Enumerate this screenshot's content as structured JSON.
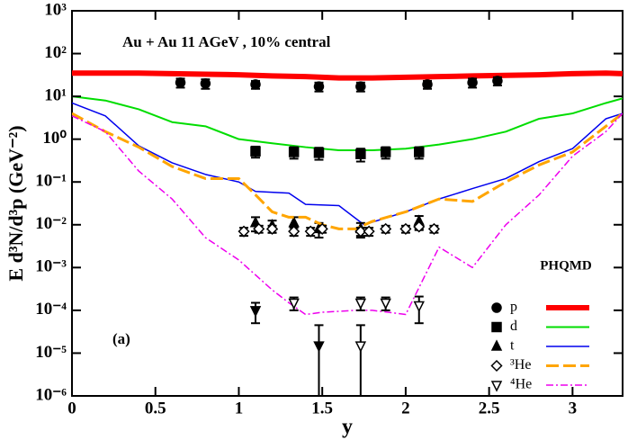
{
  "chart_data": {
    "type": "line",
    "annotation": "Au + Au 11 AGeV , 10% central",
    "panel_label": "(a)",
    "legend_title": "PHQMD",
    "x_label": "y",
    "y_label": "E d³N/d³p (GeV⁻²)",
    "log_y": true,
    "xlim": [
      0,
      3.3
    ],
    "ylim": [
      1e-06,
      1000
    ],
    "xticks": [
      0,
      0.5,
      1,
      1.5,
      2,
      2.5,
      3
    ],
    "yticks": [
      {
        "value": 1e-06,
        "label": "10⁻⁶"
      },
      {
        "value": 1e-05,
        "label": "10⁻⁵"
      },
      {
        "value": 0.0001,
        "label": "10⁻⁴"
      },
      {
        "value": 0.001,
        "label": "10⁻³"
      },
      {
        "value": 0.01,
        "label": "10⁻²"
      },
      {
        "value": 0.1,
        "label": "10⁻¹"
      },
      {
        "value": 1,
        "label": "10⁰"
      },
      {
        "value": 10,
        "label": "10¹"
      },
      {
        "value": 100,
        "label": "10²"
      },
      {
        "value": 1000,
        "label": "10³"
      }
    ],
    "series": [
      {
        "name": "p",
        "color": "#ff0000",
        "line_width": 6,
        "dash": "",
        "marker": "circle",
        "model": {
          "x": [
            0,
            0.2,
            0.4,
            0.6,
            0.8,
            1.0,
            1.2,
            1.4,
            1.6,
            1.8,
            2.0,
            2.2,
            2.4,
            2.6,
            2.8,
            3.0,
            3.2,
            3.3
          ],
          "values": [
            35,
            35,
            35,
            34,
            33,
            32,
            30,
            29,
            27,
            27,
            28,
            29,
            30,
            31,
            32,
            34,
            35,
            34
          ]
        },
        "data": {
          "x": [
            0.65,
            0.8,
            1.1,
            1.48,
            1.73,
            2.13,
            2.4,
            2.55
          ],
          "values": [
            21,
            20,
            19,
            17,
            17,
            19,
            21,
            23
          ],
          "errors": [
            5,
            5,
            4,
            4,
            4,
            4,
            5,
            5
          ],
          "filled": [
            true,
            true,
            true,
            true,
            true,
            true,
            true,
            true
          ]
        }
      },
      {
        "name": "d",
        "color": "#00dd00",
        "line_width": 2,
        "dash": "",
        "marker": "square",
        "model": {
          "x": [
            0,
            0.2,
            0.4,
            0.6,
            0.8,
            1.0,
            1.2,
            1.4,
            1.6,
            1.8,
            2.0,
            2.2,
            2.4,
            2.6,
            2.8,
            3.0,
            3.2,
            3.3
          ],
          "values": [
            10,
            8,
            5,
            2.5,
            2,
            1,
            0.8,
            0.65,
            0.55,
            0.55,
            0.6,
            0.75,
            1,
            1.5,
            3,
            4,
            7,
            9
          ]
        },
        "data": {
          "x": [
            1.1,
            1.33,
            1.48,
            1.73,
            1.88,
            2.08
          ],
          "values": [
            0.52,
            0.5,
            0.48,
            0.45,
            0.5,
            0.5
          ],
          "errors": [
            0.15,
            0.15,
            0.15,
            0.15,
            0.15,
            0.15
          ],
          "filled": [
            true,
            true,
            true,
            true,
            true,
            true
          ]
        }
      },
      {
        "name": "t",
        "color": "#0000ee",
        "line_width": 1.5,
        "dash": "",
        "marker": "triangle-up",
        "model": {
          "x": [
            0,
            0.2,
            0.4,
            0.6,
            0.8,
            1.0,
            1.1,
            1.3,
            1.4,
            1.6,
            1.75,
            2.0,
            2.2,
            2.4,
            2.6,
            2.8,
            3.0,
            3.2,
            3.3
          ],
          "values": [
            7,
            3.5,
            0.7,
            0.28,
            0.15,
            0.1,
            0.06,
            0.055,
            0.03,
            0.028,
            0.01,
            0.02,
            0.04,
            0.07,
            0.12,
            0.3,
            0.6,
            3,
            4
          ]
        },
        "data": {
          "x": [
            1.1,
            1.2,
            1.33,
            1.48,
            1.73,
            2.08
          ],
          "values": [
            0.011,
            0.0095,
            0.011,
            0.008,
            0.008,
            0.012
          ],
          "errors": [
            0.004,
            0.003,
            0.004,
            0.003,
            0.003,
            0.004
          ],
          "filled": [
            true,
            true,
            true,
            true,
            true,
            true
          ]
        }
      },
      {
        "name": "³He",
        "color": "#ffa500",
        "line_width": 3,
        "dash": "14 5",
        "marker": "diamond",
        "model": {
          "x": [
            0,
            0.2,
            0.4,
            0.6,
            0.8,
            1.0,
            1.1,
            1.2,
            1.3,
            1.4,
            1.5,
            1.6,
            1.7,
            1.8,
            2.0,
            2.2,
            2.4,
            2.6,
            2.8,
            3.0,
            3.2,
            3.3
          ],
          "values": [
            4,
            1.5,
            0.65,
            0.23,
            0.12,
            0.12,
            0.05,
            0.02,
            0.015,
            0.015,
            0.01,
            0.008,
            0.008,
            0.012,
            0.02,
            0.04,
            0.035,
            0.1,
            0.25,
            0.5,
            2,
            4
          ]
        },
        "data": {
          "x": [
            1.03,
            1.12,
            1.2,
            1.33,
            1.43,
            1.5,
            1.73,
            1.78,
            1.88,
            2.0,
            2.08,
            2.17
          ],
          "values": [
            0.007,
            0.008,
            0.008,
            0.007,
            0.007,
            0.008,
            0.007,
            0.007,
            0.008,
            0.008,
            0.009,
            0.008
          ],
          "errors": [
            0.0015,
            0.0015,
            0.0015,
            0.0015,
            0.0015,
            0.0015,
            0.0015,
            0.0015,
            0.0015,
            0.0015,
            0.0015,
            0.0015
          ],
          "filled": [
            false,
            false,
            false,
            false,
            false,
            false,
            false,
            false,
            false,
            false,
            false,
            false
          ]
        }
      },
      {
        "name": "⁴He",
        "color": "#ee00ee",
        "line_width": 1.5,
        "dash": "8 3 2 3",
        "marker": "triangle-down",
        "model": {
          "x": [
            0,
            0.2,
            0.4,
            0.6,
            0.8,
            1.0,
            1.2,
            1.3,
            1.4,
            1.5,
            1.7,
            1.8,
            2.0,
            2.2,
            2.4,
            2.6,
            2.8,
            3.0,
            3.2,
            3.3
          ],
          "values": [
            3.5,
            1.5,
            0.18,
            0.04,
            0.005,
            0.0015,
            0.0003,
            0.00015,
            8e-05,
            9e-05,
            0.0001,
            0.0001,
            8e-05,
            0.003,
            0.001,
            0.01,
            0.05,
            0.4,
            1.5,
            4
          ]
        },
        "data": {
          "x": [
            1.1,
            1.33,
            1.48,
            1.73,
            1.73,
            1.88,
            2.08
          ],
          "values": [
            0.0001,
            0.00015,
            1.5e-05,
            0.00015,
            1.5e-05,
            0.00015,
            0.00013
          ],
          "errors": [
            5e-05,
            5e-05,
            3e-05,
            5e-05,
            3e-05,
            5e-05,
            8e-05
          ],
          "filled": [
            true,
            false,
            true,
            false,
            false,
            false,
            false
          ]
        }
      }
    ]
  }
}
